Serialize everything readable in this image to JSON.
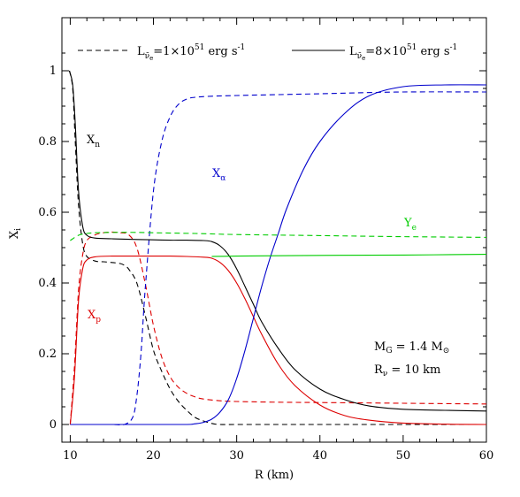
{
  "chart_data": {
    "type": "line",
    "xlabel": "R (km)",
    "ylabel": "X_i",
    "xlim": [
      9,
      60
    ],
    "ylim": [
      -0.05,
      1.15
    ],
    "x_ticks": [
      10,
      20,
      30,
      40,
      50,
      60
    ],
    "y_ticks": [
      0,
      0.2,
      0.4,
      0.6,
      0.8,
      1
    ],
    "x_tick_labels": [
      "10",
      "20",
      "30",
      "40",
      "50",
      "60"
    ],
    "y_tick_labels": [
      "0",
      "0.2",
      "0.4",
      "0.6",
      "0.8",
      "1"
    ],
    "legend": [
      {
        "label": "L_ν̄e=1×10^51 erg s^-1",
        "dash": "dashed"
      },
      {
        "label": "L_ν̄e=8×10^51 erg s^-1",
        "dash": "solid"
      }
    ],
    "annotations": [
      {
        "text": "Xn",
        "color": "#000000"
      },
      {
        "text": "Xα",
        "color": "#0000cc"
      },
      {
        "text": "Ye",
        "color": "#00cc00"
      },
      {
        "text": "Xp",
        "color": "#dd0000"
      },
      {
        "text": "MG = 1.4 M⊙",
        "color": "#000000"
      },
      {
        "text": "Rν = 10 km",
        "color": "#000000"
      }
    ],
    "series": [
      {
        "color": "#000000",
        "dash": "dashed",
        "x": [
          9.9,
          10.3,
          10.6,
          11.0,
          11.5,
          12.0,
          13,
          14,
          15,
          16,
          16.5,
          17,
          18,
          19,
          20,
          21,
          22,
          23,
          24,
          25,
          26,
          27,
          28,
          30,
          35,
          40,
          50,
          60
        ],
        "y": [
          1.0,
          0.95,
          0.8,
          0.62,
          0.51,
          0.475,
          0.462,
          0.46,
          0.458,
          0.455,
          0.45,
          0.44,
          0.4,
          0.31,
          0.21,
          0.15,
          0.1,
          0.065,
          0.04,
          0.02,
          0.01,
          0.003,
          0.0,
          0.0,
          0.0,
          0.0,
          0.0,
          0.0
        ]
      },
      {
        "color": "#dd0000",
        "dash": "dashed",
        "x": [
          10.0,
          10.5,
          11.0,
          11.5,
          12.0,
          13,
          14,
          15,
          16,
          17,
          18,
          19,
          20,
          21,
          22,
          23,
          24,
          25,
          26,
          28,
          30,
          35,
          40,
          50,
          60
        ],
        "y": [
          0.0,
          0.16,
          0.38,
          0.48,
          0.52,
          0.536,
          0.542,
          0.544,
          0.542,
          0.537,
          0.5,
          0.4,
          0.28,
          0.19,
          0.135,
          0.105,
          0.088,
          0.078,
          0.072,
          0.067,
          0.065,
          0.063,
          0.062,
          0.06,
          0.058
        ]
      },
      {
        "color": "#0000cc",
        "dash": "dashed",
        "x": [
          10,
          15,
          16.5,
          17.5,
          18.0,
          18.5,
          19.0,
          20,
          21,
          22,
          23,
          24,
          25,
          27,
          30,
          40,
          50,
          60
        ],
        "y": [
          0,
          0,
          0.0,
          0.02,
          0.08,
          0.2,
          0.38,
          0.66,
          0.8,
          0.87,
          0.905,
          0.92,
          0.925,
          0.928,
          0.93,
          0.935,
          0.94,
          0.94
        ]
      },
      {
        "color": "#00cc00",
        "dash": "dashed",
        "x": [
          10,
          11,
          12,
          13,
          15,
          18,
          20,
          25,
          30,
          40,
          50,
          60
        ],
        "y": [
          0.52,
          0.535,
          0.54,
          0.542,
          0.543,
          0.543,
          0.542,
          0.54,
          0.537,
          0.534,
          0.531,
          0.529
        ]
      },
      {
        "color": "#000000",
        "dash": "solid",
        "x": [
          9.9,
          10.3,
          10.6,
          11.0,
          11.5,
          12.0,
          13,
          15,
          18,
          20,
          22,
          24,
          26,
          27,
          28,
          29,
          30,
          31,
          32,
          33,
          35,
          37,
          40,
          43,
          46,
          50,
          55,
          60
        ],
        "y": [
          1.0,
          0.96,
          0.85,
          0.66,
          0.56,
          0.535,
          0.527,
          0.525,
          0.523,
          0.522,
          0.521,
          0.521,
          0.52,
          0.517,
          0.505,
          0.48,
          0.44,
          0.39,
          0.34,
          0.29,
          0.215,
          0.155,
          0.1,
          0.07,
          0.052,
          0.043,
          0.04,
          0.038
        ]
      },
      {
        "color": "#dd0000",
        "dash": "solid",
        "x": [
          10.0,
          10.5,
          11.0,
          11.5,
          12.0,
          13,
          15,
          18,
          20,
          22,
          24,
          26,
          27,
          28,
          29,
          30,
          31,
          32,
          33,
          35,
          37,
          40,
          43,
          46,
          50,
          55,
          60
        ],
        "y": [
          0.0,
          0.13,
          0.35,
          0.44,
          0.465,
          0.474,
          0.476,
          0.476,
          0.476,
          0.476,
          0.475,
          0.473,
          0.47,
          0.458,
          0.435,
          0.4,
          0.355,
          0.305,
          0.255,
          0.17,
          0.11,
          0.055,
          0.025,
          0.012,
          0.004,
          0.001,
          0.0
        ]
      },
      {
        "color": "#0000cc",
        "dash": "solid",
        "x": [
          10,
          20,
          24,
          25,
          26,
          27,
          28,
          29,
          30,
          31,
          32,
          33,
          34,
          35,
          36,
          38,
          40,
          43,
          46,
          50,
          55,
          60
        ],
        "y": [
          0,
          0,
          0.0,
          0.002,
          0.006,
          0.015,
          0.035,
          0.07,
          0.13,
          0.21,
          0.3,
          0.39,
          0.47,
          0.54,
          0.61,
          0.72,
          0.8,
          0.88,
          0.93,
          0.955,
          0.96,
          0.96
        ]
      },
      {
        "color": "#00cc00",
        "dash": "solid",
        "x": [
          27,
          30,
          40,
          50,
          60
        ],
        "y": [
          0.475,
          0.476,
          0.478,
          0.479,
          0.481
        ]
      }
    ]
  }
}
